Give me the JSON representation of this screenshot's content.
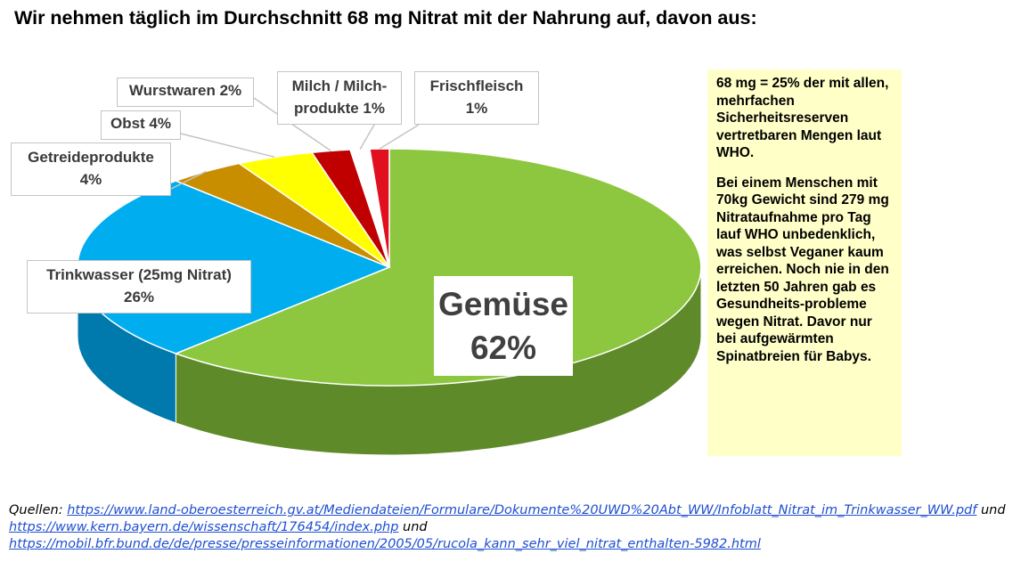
{
  "title": "Wir nehmen täglich im Durchschnitt 68 mg Nitrat mit der Nahrung auf, davon aus:",
  "chart_data": {
    "type": "pie",
    "style": "3d",
    "title": "Wir nehmen täglich im Durchschnitt 68 mg Nitrat mit der Nahrung auf, davon aus:",
    "slices": [
      {
        "label_lines": [
          "Gemüse",
          "62%"
        ],
        "value": 62,
        "color": "#8dc63f",
        "side_color": "#5f8a2a"
      },
      {
        "label_lines": [
          "Trinkwasser (25mg Nitrat)",
          "26%"
        ],
        "value": 26,
        "color": "#00aeef",
        "side_color": "#0079ad"
      },
      {
        "label_lines": [
          "Getreideprodukte",
          "4%"
        ],
        "value": 4,
        "color": "#c98d00",
        "side_color": "#8c6300"
      },
      {
        "label_lines": [
          "Obst 4%"
        ],
        "value": 4,
        "color": "#ffff00",
        "side_color": "#b8b800"
      },
      {
        "label_lines": [
          "Wurstwaren 2%"
        ],
        "value": 2,
        "color": "#c00000",
        "side_color": "#800000"
      },
      {
        "label_lines": [
          "Milch / Milch-",
          "produkte 1%"
        ],
        "value": 1,
        "color": "#ffffff",
        "side_color": "#d8d8d8"
      },
      {
        "label_lines": [
          "Frischfleisch",
          "1%"
        ],
        "value": 1,
        "color": "#e0101f",
        "side_color": "#900010"
      }
    ],
    "legend": "none"
  },
  "note": {
    "paragraphs": [
      "68 mg = 25% der mit allen, mehrfachen Sicherheitsreserven vertretbaren Mengen laut WHO.",
      "Bei einem Menschen mit 70kg Gewicht sind 279 mg Nitrataufnahme pro Tag lauf WHO unbedenklich, was selbst Veganer kaum erreichen. Noch nie in den letzten 50 Jahren gab es Gesundheits-probleme wegen Nitrat. Davor nur bei aufgewärmten Spinatbreien für Babys."
    ]
  },
  "sources": {
    "prefix": "Quellen:",
    "link1": "https://www.land-oberoesterreich.gv.at/Mediendateien/Formulare/Dokumente%20UWD%20Abt_WW/Infoblatt_Nitrat_im_Trinkwasser_WW.pdf",
    "and1": "und",
    "link2": "https://www.kern.bayern.de/wissenschaft/176454/index.php",
    "and2": "und",
    "link3": "https://mobil.bfr.bund.de/de/presse/presseinformationen/2005/05/rucola_kann_sehr_viel_nitrat_enthalten-5982.html",
    "link_color": "#1f4fd1"
  }
}
